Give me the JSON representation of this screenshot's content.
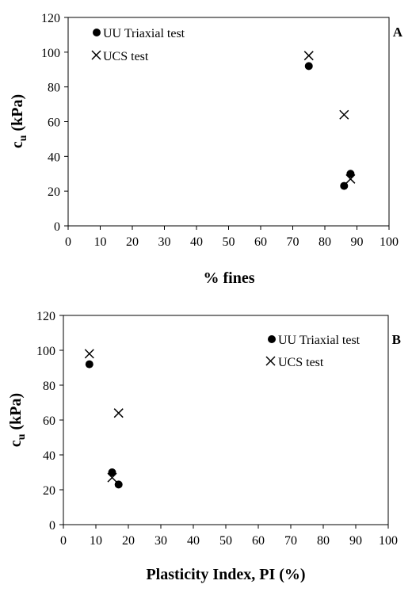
{
  "chart_data": [
    {
      "type": "scatter",
      "panel_label": "A",
      "xlabel": "% fines",
      "ylabel_main": "c",
      "ylabel_sub": "u",
      "ylabel_unit": " (kPa)",
      "xlim": [
        0,
        100
      ],
      "ylim": [
        0,
        120
      ],
      "xticks": [
        0,
        10,
        20,
        30,
        40,
        50,
        60,
        70,
        80,
        90,
        100
      ],
      "yticks": [
        0,
        20,
        40,
        60,
        80,
        100,
        120
      ],
      "grid": false,
      "legend_position": "top-left",
      "series": [
        {
          "name": "UU Triaxial test",
          "marker": "circle",
          "points": [
            [
              75,
              92
            ],
            [
              86,
              23
            ],
            [
              88,
              30
            ]
          ]
        },
        {
          "name": "UCS test",
          "marker": "cross",
          "points": [
            [
              75,
              98
            ],
            [
              86,
              64
            ],
            [
              88,
              27
            ]
          ]
        }
      ]
    },
    {
      "type": "scatter",
      "panel_label": "B",
      "xlabel": "Plasticity Index, PI (%)",
      "ylabel_main": "c",
      "ylabel_sub": "u",
      "ylabel_unit": " (kPa)",
      "xlim": [
        0,
        100
      ],
      "ylim": [
        0,
        120
      ],
      "xticks": [
        0,
        10,
        20,
        30,
        40,
        50,
        60,
        70,
        80,
        90,
        100
      ],
      "yticks": [
        0,
        20,
        40,
        60,
        80,
        100,
        120
      ],
      "grid": false,
      "legend_position": "top-right",
      "series": [
        {
          "name": "UU Triaxial test",
          "marker": "circle",
          "points": [
            [
              8,
              92
            ],
            [
              15,
              30
            ],
            [
              17,
              23
            ]
          ]
        },
        {
          "name": "UCS test",
          "marker": "cross",
          "points": [
            [
              8,
              98
            ],
            [
              15,
              27
            ],
            [
              17,
              64
            ]
          ]
        }
      ]
    }
  ]
}
